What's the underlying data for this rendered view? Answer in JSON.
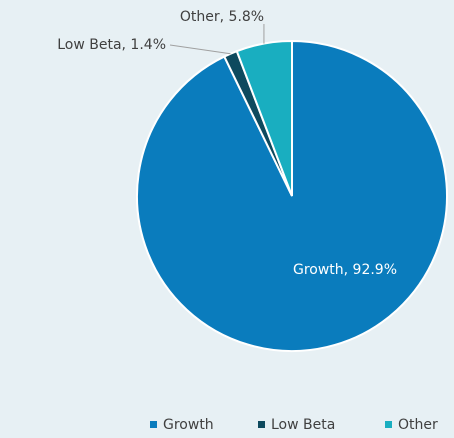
{
  "chart_data": {
    "type": "pie",
    "categories": [
      "Growth",
      "Low Beta",
      "Other"
    ],
    "values": [
      92.9,
      1.4,
      5.8
    ],
    "value_labels": [
      "Growth, 92.9%",
      "Low Beta, 1.4%",
      "Other, 5.8%"
    ],
    "colors": [
      "#0a7cbd",
      "#0e4a5e",
      "#19aec0"
    ],
    "legend": "bottom"
  }
}
